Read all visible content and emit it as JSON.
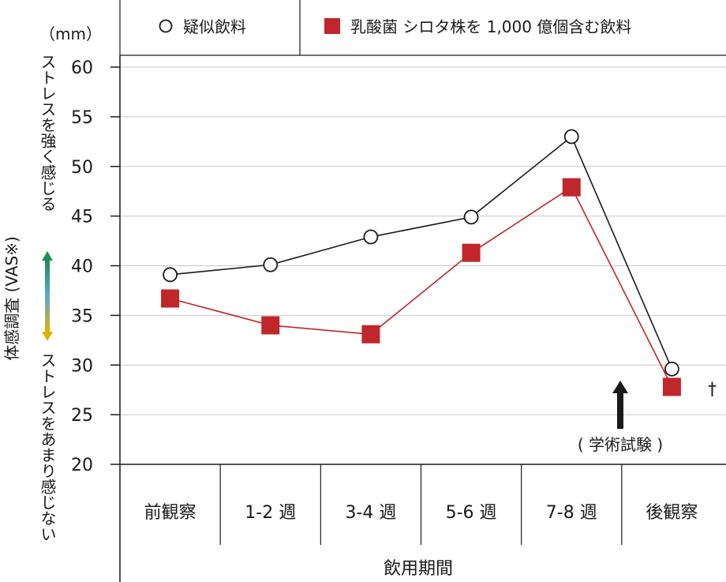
{
  "chart_data": {
    "type": "line",
    "unit": "（mm）",
    "categories": [
      "前観察",
      "1-2 週",
      "3-4 週",
      "5-6 週",
      "7-8 週",
      "後観察"
    ],
    "xlabel": "飲用期間",
    "ylabel": "体感調査 (VAS※)",
    "ylim": [
      20,
      60
    ],
    "yticks": [
      20,
      25,
      30,
      35,
      40,
      45,
      50,
      55,
      60
    ],
    "y_top_label": "ストレスを強く感じる",
    "y_bottom_label": "ストレスをあまり感じない",
    "grid": true,
    "legend_position": "top",
    "series": [
      {
        "name": "疑似飲料",
        "marker": "open-circle",
        "color": "#1a1a1a",
        "values": [
          39.1,
          40.1,
          42.9,
          44.9,
          53.0,
          29.6
        ]
      },
      {
        "name": "乳酸菌 シロタ株を 1,000 億個含む飲料",
        "marker": "filled-square",
        "color": "#c0262a",
        "values": [
          36.7,
          34.0,
          33.1,
          41.3,
          47.9,
          27.8
        ]
      }
    ],
    "annotations": {
      "exam_label": "( 学術試験 )",
      "dagger": "†"
    }
  }
}
